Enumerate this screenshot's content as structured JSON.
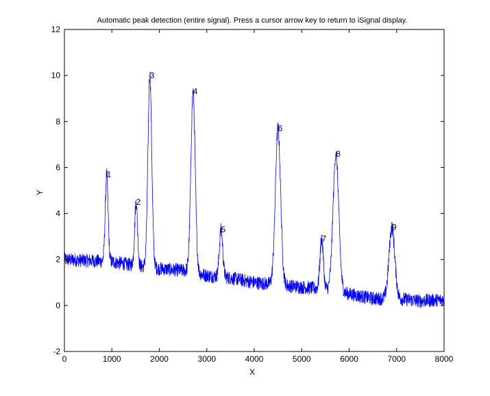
{
  "chart_data": {
    "type": "line",
    "title": "Automatic peak detection (entire signal). Press a cursor arrow key to return to iSignal display.",
    "xlabel": "X",
    "ylabel": "Y",
    "xlim": [
      0,
      8000
    ],
    "ylim": [
      -2,
      12
    ],
    "xticks": [
      0,
      1000,
      2000,
      3000,
      4000,
      5000,
      6000,
      7000,
      8000
    ],
    "yticks": [
      -2,
      0,
      2,
      4,
      6,
      8,
      10,
      12
    ],
    "grid": false,
    "line_color": "#0000ff",
    "baseline": [
      [
        0,
        2.0
      ],
      [
        1000,
        1.9
      ],
      [
        1600,
        1.7
      ],
      [
        2000,
        1.6
      ],
      [
        2600,
        1.5
      ],
      [
        3000,
        1.3
      ],
      [
        3500,
        1.2
      ],
      [
        4000,
        1.0
      ],
      [
        4500,
        0.9
      ],
      [
        5000,
        0.8
      ],
      [
        5500,
        0.7
      ],
      [
        6000,
        0.5
      ],
      [
        6500,
        0.3
      ],
      [
        7000,
        0.3
      ],
      [
        7500,
        0.2
      ],
      [
        8000,
        0.25
      ]
    ],
    "noise_amplitude": 0.3,
    "peaks": [
      {
        "label": "1",
        "x": 890,
        "y": 5.7,
        "width": 30
      },
      {
        "label": "2",
        "x": 1510,
        "y": 4.5,
        "width": 30
      },
      {
        "label": "3",
        "x": 1800,
        "y": 10.0,
        "width": 40
      },
      {
        "label": "4",
        "x": 2710,
        "y": 9.3,
        "width": 45
      },
      {
        "label": "5",
        "x": 3300,
        "y": 3.3,
        "width": 35
      },
      {
        "label": "6",
        "x": 4500,
        "y": 7.7,
        "width": 55
      },
      {
        "label": "7",
        "x": 5420,
        "y": 2.9,
        "width": 35
      },
      {
        "label": "8",
        "x": 5720,
        "y": 6.6,
        "width": 60
      },
      {
        "label": "9",
        "x": 6900,
        "y": 3.4,
        "width": 60
      }
    ]
  }
}
